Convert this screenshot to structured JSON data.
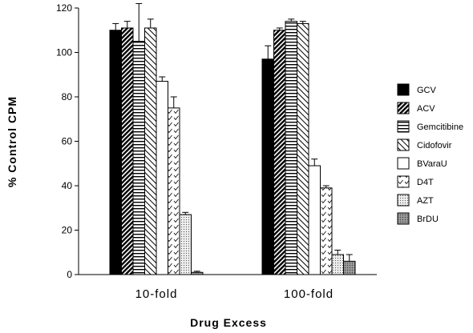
{
  "chart_data": {
    "type": "bar",
    "title": "",
    "xlabel": "Drug  Excess",
    "ylabel": "% Control  CPM",
    "ylim": [
      0,
      120
    ],
    "yticks": [
      0,
      20,
      40,
      60,
      80,
      100,
      120
    ],
    "categories": [
      "10-fold",
      "100-fold"
    ],
    "grid": false,
    "legend_position": "right",
    "series": [
      {
        "name": "GCV",
        "values": [
          110,
          97
        ],
        "errors": [
          3,
          6
        ],
        "color": "#000000",
        "pattern": "solid-black"
      },
      {
        "name": "ACV",
        "values": [
          111,
          110
        ],
        "errors": [
          3,
          1
        ],
        "color": "#000000",
        "pattern": "diagonal-dense"
      },
      {
        "name": "Gemcitibine",
        "values": [
          105,
          114
        ],
        "errors": [
          17,
          1
        ],
        "color": "#000000",
        "pattern": "horizontal"
      },
      {
        "name": "Cidofovir",
        "values": [
          111,
          113
        ],
        "errors": [
          4,
          1
        ],
        "color": "#000000",
        "pattern": "diagonal-light"
      },
      {
        "name": "BVaraU",
        "values": [
          87,
          49
        ],
        "errors": [
          2,
          3
        ],
        "color": "#ffffff",
        "pattern": "white"
      },
      {
        "name": "D4T",
        "values": [
          75,
          39
        ],
        "errors": [
          5,
          1
        ],
        "color": "#000000",
        "pattern": "checkmarks"
      },
      {
        "name": "AZT",
        "values": [
          27,
          9
        ],
        "errors": [
          1,
          2
        ],
        "color": "#aaaaaa",
        "pattern": "dots"
      },
      {
        "name": "BrDU",
        "values": [
          1,
          6
        ],
        "errors": [
          0.5,
          3
        ],
        "color": "#888888",
        "pattern": "grey-dots"
      }
    ]
  }
}
